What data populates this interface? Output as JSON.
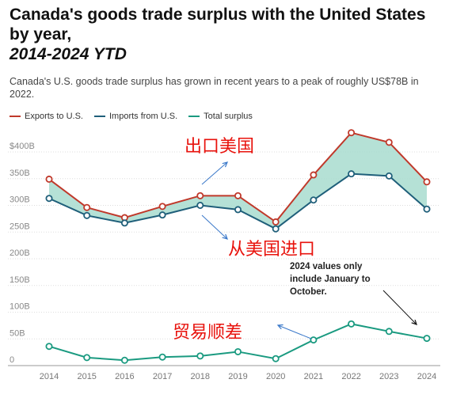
{
  "header": {
    "title": "Canada's goods trade surplus with the United States by year,",
    "subtitle": "2014-2024 YTD",
    "description": "Canada's U.S. goods trade surplus has grown in recent years to a peak of roughly US$78B in 2022."
  },
  "legend": [
    {
      "label": "Exports to U.S.",
      "color": "#c0392b"
    },
    {
      "label": "Imports from U.S.",
      "color": "#1f5f7a"
    },
    {
      "label": "Total surplus",
      "color": "#1a9a80"
    }
  ],
  "annotations": {
    "exports_cn": "出口美国",
    "imports_cn": "从美国进口",
    "surplus_cn": "贸易顺差",
    "note": [
      "2024 values only",
      "include January to",
      "October."
    ]
  },
  "colors": {
    "exports": "#c0392b",
    "imports": "#1f5f7a",
    "surplus": "#1a9a80",
    "fill": "#a8dccf",
    "annotation_red": "#e8120c",
    "arrow": "#3a78c9"
  },
  "chart_data": {
    "type": "line",
    "x": [
      "2014",
      "2015",
      "2016",
      "2017",
      "2018",
      "2019",
      "2020",
      "2021",
      "2022",
      "2023",
      "2024"
    ],
    "series": [
      {
        "name": "Exports to U.S.",
        "values": [
          349,
          296,
          277,
          298,
          318,
          318,
          269,
          357,
          436,
          418,
          344
        ]
      },
      {
        "name": "Imports from U.S.",
        "values": [
          313,
          281,
          267,
          282,
          300,
          292,
          256,
          310,
          359,
          355,
          293
        ]
      },
      {
        "name": "Total surplus",
        "values": [
          36,
          15,
          10,
          16,
          18,
          26,
          13,
          48,
          78,
          64,
          51
        ]
      }
    ],
    "y_ticks": [
      "0",
      "50B",
      "100B",
      "150B",
      "200B",
      "250B",
      "300B",
      "350B",
      "$400B"
    ],
    "ylim": [
      0,
      400
    ],
    "grid": true,
    "legend_position": "top-left"
  }
}
